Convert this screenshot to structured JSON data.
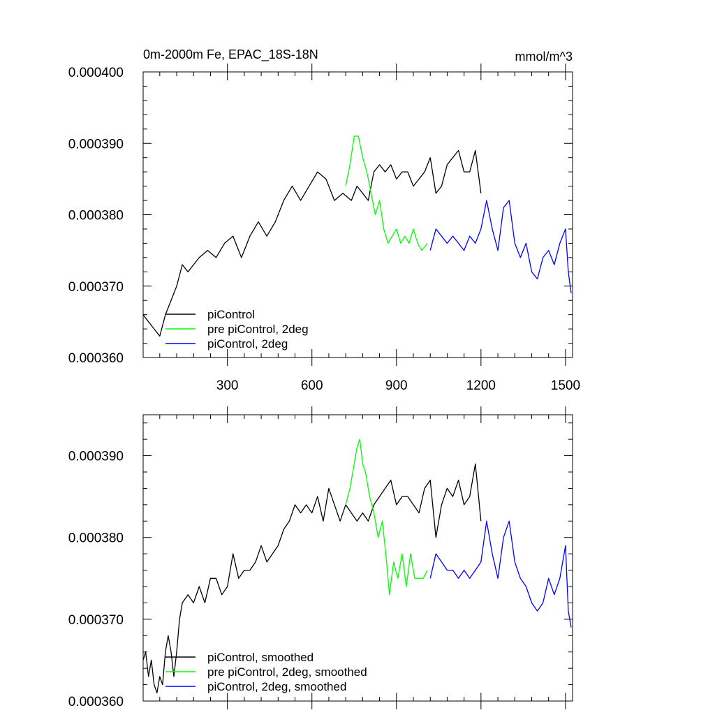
{
  "chart_data": [
    {
      "type": "line",
      "title": "0m-2000m Fe, EPAC_18S-18N",
      "units": "mmol/m^3",
      "xlim": [
        1,
        1525
      ],
      "ylim": [
        0.00036,
        0.0004
      ],
      "x_ticks": [
        300,
        600,
        900,
        1200,
        1500
      ],
      "x_tick_labels": [
        "300",
        "600",
        "900",
        "1200",
        "1500"
      ],
      "y_ticks": [
        0.00036,
        0.00037,
        0.00038,
        0.00039,
        0.0004
      ],
      "y_tick_labels": [
        "0.000360",
        "0.000370",
        "0.000380",
        "0.000390",
        "0.000400"
      ],
      "legend_position": "bottom-left",
      "series": [
        {
          "name": "piControl",
          "color": "#000000",
          "x": [
            1,
            20,
            40,
            60,
            80,
            100,
            120,
            140,
            160,
            180,
            200,
            230,
            260,
            290,
            320,
            350,
            380,
            410,
            440,
            470,
            500,
            530,
            560,
            590,
            620,
            650,
            680,
            710,
            740,
            760,
            780,
            800,
            820,
            840,
            860,
            880,
            900,
            920,
            940,
            960,
            980,
            1000,
            1020,
            1040,
            1060,
            1080,
            1100,
            1120,
            1140,
            1160,
            1180,
            1200
          ],
          "values": [
            0.000366,
            0.000365,
            0.000364,
            0.000363,
            0.000366,
            0.000368,
            0.00037,
            0.000373,
            0.000372,
            0.000373,
            0.000374,
            0.000375,
            0.000374,
            0.000376,
            0.000377,
            0.000374,
            0.000377,
            0.000379,
            0.000377,
            0.000379,
            0.000382,
            0.000384,
            0.000382,
            0.000384,
            0.000386,
            0.000385,
            0.000382,
            0.000383,
            0.000382,
            0.000384,
            0.000383,
            0.000382,
            0.000386,
            0.000387,
            0.000386,
            0.000387,
            0.000385,
            0.000386,
            0.000386,
            0.000384,
            0.000385,
            0.000386,
            0.000388,
            0.000383,
            0.000384,
            0.000387,
            0.000388,
            0.000389,
            0.000386,
            0.000386,
            0.000389,
            0.000383
          ]
        },
        {
          "name": "pre piControl, 2deg",
          "color": "#00ff00",
          "x": [
            720,
            735,
            750,
            765,
            780,
            795,
            810,
            825,
            840,
            855,
            870,
            885,
            900,
            915,
            930,
            945,
            960,
            975,
            990,
            1010
          ],
          "values": [
            0.000384,
            0.000387,
            0.000391,
            0.000391,
            0.000388,
            0.000386,
            0.000383,
            0.00038,
            0.000382,
            0.000378,
            0.000376,
            0.000377,
            0.000378,
            0.000376,
            0.000377,
            0.000376,
            0.000378,
            0.000376,
            0.000375,
            0.000376
          ]
        },
        {
          "name": "piControl, 2deg",
          "color": "#0000ff",
          "x": [
            1020,
            1040,
            1060,
            1080,
            1100,
            1120,
            1140,
            1160,
            1180,
            1200,
            1220,
            1240,
            1260,
            1280,
            1300,
            1320,
            1340,
            1360,
            1380,
            1400,
            1420,
            1440,
            1460,
            1480,
            1500,
            1510,
            1520
          ],
          "values": [
            0.000375,
            0.000378,
            0.000377,
            0.000376,
            0.000377,
            0.000376,
            0.000375,
            0.000377,
            0.000376,
            0.000378,
            0.000382,
            0.000378,
            0.000375,
            0.000381,
            0.000382,
            0.000376,
            0.000374,
            0.000376,
            0.000372,
            0.000371,
            0.000374,
            0.000375,
            0.000373,
            0.000376,
            0.000378,
            0.000372,
            0.000369
          ]
        }
      ]
    },
    {
      "type": "line",
      "title": "",
      "xlim": [
        1,
        1525
      ],
      "ylim": [
        0.00036,
        0.000395
      ],
      "x_ticks": [
        300,
        600,
        900,
        1200,
        1500
      ],
      "y_ticks": [
        0.00036,
        0.00037,
        0.00038,
        0.00039
      ],
      "y_tick_labels": [
        "0.000360",
        "0.000370",
        "0.000380",
        "0.000390"
      ],
      "legend_position": "bottom-left",
      "series": [
        {
          "name": "piControl, smoothed",
          "color": "#000000",
          "x": [
            1,
            10,
            20,
            30,
            40,
            50,
            60,
            70,
            80,
            90,
            100,
            110,
            120,
            130,
            140,
            160,
            180,
            200,
            220,
            240,
            260,
            280,
            300,
            320,
            340,
            360,
            380,
            400,
            420,
            440,
            460,
            480,
            500,
            520,
            540,
            560,
            580,
            600,
            620,
            640,
            660,
            680,
            700,
            720,
            740,
            760,
            780,
            800,
            820,
            840,
            860,
            880,
            900,
            920,
            940,
            960,
            980,
            1000,
            1020,
            1040,
            1060,
            1080,
            1100,
            1120,
            1140,
            1160,
            1180,
            1200
          ],
          "values": [
            0.000365,
            0.000366,
            0.000363,
            0.000365,
            0.000362,
            0.000361,
            0.000363,
            0.000362,
            0.000366,
            0.000368,
            0.000366,
            0.000363,
            0.000366,
            0.00037,
            0.000372,
            0.000373,
            0.000372,
            0.000374,
            0.000372,
            0.000375,
            0.000375,
            0.000373,
            0.000374,
            0.000378,
            0.000375,
            0.000376,
            0.000376,
            0.000377,
            0.000379,
            0.000377,
            0.000378,
            0.000379,
            0.000381,
            0.000382,
            0.000384,
            0.000383,
            0.000384,
            0.000383,
            0.000385,
            0.000382,
            0.000386,
            0.000384,
            0.000382,
            0.000384,
            0.000383,
            0.000382,
            0.000383,
            0.000382,
            0.000384,
            0.000385,
            0.000386,
            0.000387,
            0.000384,
            0.000385,
            0.000385,
            0.000384,
            0.000383,
            0.000386,
            0.000387,
            0.00038,
            0.000384,
            0.000386,
            0.000385,
            0.000387,
            0.000384,
            0.000385,
            0.000389,
            0.000382
          ]
        },
        {
          "name": "pre piControl, 2deg, smoothed",
          "color": "#00ff00",
          "x": [
            720,
            735,
            750,
            760,
            770,
            780,
            790,
            805,
            820,
            835,
            850,
            865,
            875,
            890,
            905,
            920,
            935,
            950,
            965,
            980,
            995,
            1010
          ],
          "values": [
            0.000384,
            0.000386,
            0.000389,
            0.000391,
            0.000392,
            0.000389,
            0.000388,
            0.000385,
            0.000383,
            0.00038,
            0.000382,
            0.000377,
            0.000373,
            0.000377,
            0.000375,
            0.000378,
            0.000374,
            0.000378,
            0.000375,
            0.000375,
            0.000375,
            0.000376
          ]
        },
        {
          "name": "piControl, 2deg, smoothed",
          "color": "#0000ff",
          "x": [
            1020,
            1040,
            1060,
            1080,
            1100,
            1120,
            1140,
            1160,
            1180,
            1200,
            1220,
            1240,
            1260,
            1280,
            1300,
            1320,
            1340,
            1360,
            1380,
            1400,
            1420,
            1440,
            1460,
            1480,
            1500,
            1510,
            1520
          ],
          "values": [
            0.000375,
            0.000378,
            0.000377,
            0.000376,
            0.000376,
            0.000375,
            0.000376,
            0.000375,
            0.000376,
            0.000377,
            0.000382,
            0.000378,
            0.000375,
            0.00038,
            0.000382,
            0.000377,
            0.000375,
            0.000374,
            0.000372,
            0.000371,
            0.000372,
            0.000375,
            0.000373,
            0.000375,
            0.000379,
            0.000371,
            0.000369
          ]
        }
      ]
    }
  ]
}
